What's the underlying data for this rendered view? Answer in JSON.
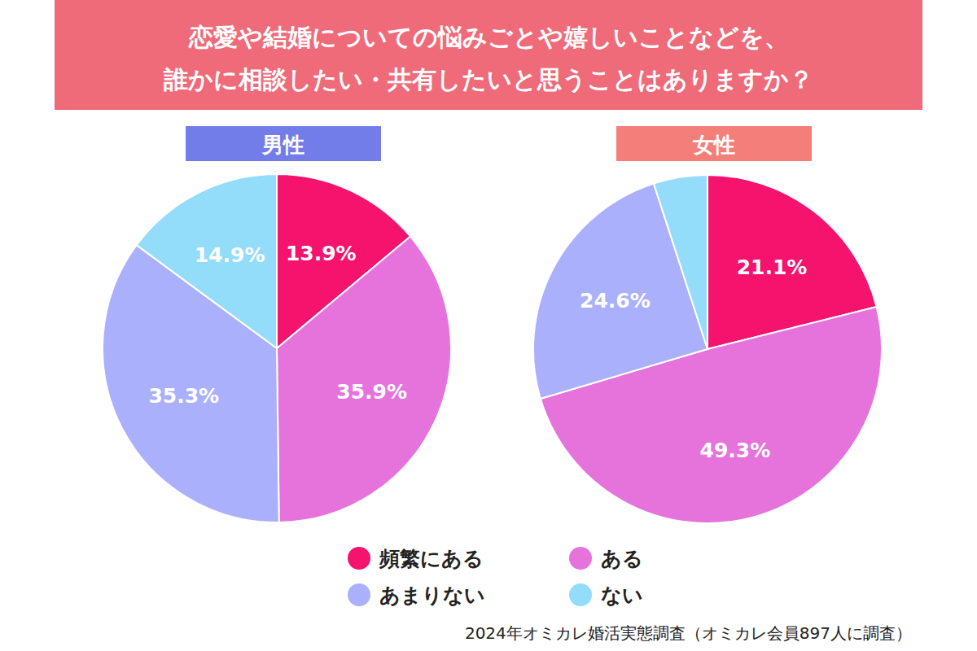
{
  "title": "恋愛や結婚についての悩みごとや嬉しいことなどを、\n誰かに相談したい・共有したいと思うことはありますか？",
  "source": "2024年オミカレ婚活実態調査（オミカレ会員897人に調査）",
  "chart_data": [
    {
      "type": "pie",
      "title": "男性",
      "categories": [
        "頻繁にある",
        "ある",
        "あまりない",
        "ない"
      ],
      "values": [
        13.9,
        35.9,
        35.3,
        14.9
      ],
      "value_labels": [
        "13.9%",
        "35.9%",
        "35.3%",
        "14.9%"
      ],
      "colors": [
        "#f5136e",
        "#e673dc",
        "#aab0fb",
        "#93ddfb"
      ],
      "data_labels": true,
      "legend": "bottom"
    },
    {
      "type": "pie",
      "title": "女性",
      "categories": [
        "頻繁にある",
        "ある",
        "あまりない",
        "ない"
      ],
      "values": [
        21.1,
        49.3,
        24.6,
        5.0
      ],
      "value_labels": [
        "21.1%",
        "49.3%",
        "24.6%",
        null
      ],
      "colors": [
        "#f5136e",
        "#e673dc",
        "#aab0fb",
        "#93ddfb"
      ],
      "data_labels": true,
      "legend": "bottom"
    }
  ]
}
